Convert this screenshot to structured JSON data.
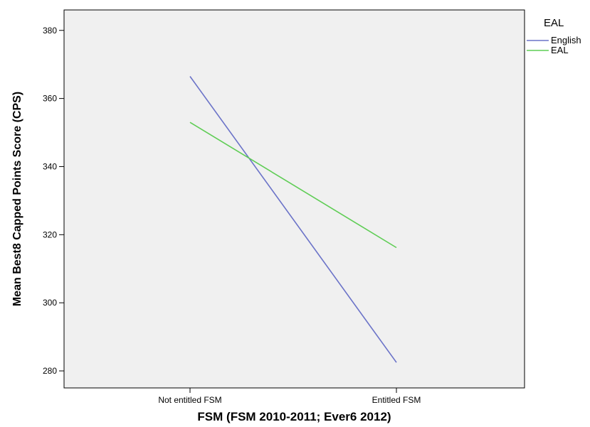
{
  "chart_data": {
    "type": "line",
    "xlabel": "FSM (FSM 2010-2011; Ever6 2012)",
    "ylabel": "Mean Best8 Capped Points Score (CPS)",
    "categories": [
      "Not entitled FSM",
      "Entitled FSM"
    ],
    "ylim": [
      275,
      386
    ],
    "yticks": [
      280,
      300,
      320,
      340,
      360,
      380
    ],
    "grid": false,
    "legend": {
      "title": "EAL",
      "position": "top-right"
    },
    "series": [
      {
        "name": "English",
        "color": "#6b73c8",
        "values": [
          366.5,
          282.5
        ]
      },
      {
        "name": "EAL",
        "color": "#5fcd55",
        "values": [
          353.0,
          316.2
        ]
      }
    ],
    "colors": {
      "plot_background": "#f0f0f0",
      "axis": "#000000"
    }
  }
}
